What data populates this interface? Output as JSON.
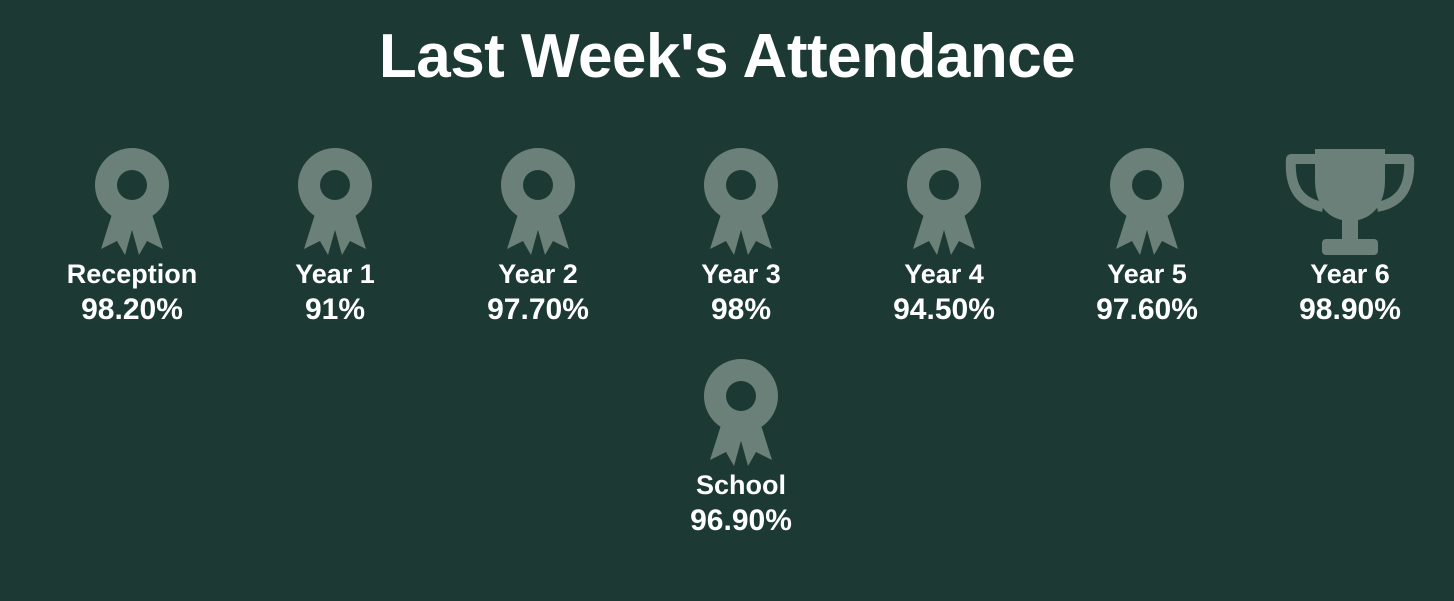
{
  "title": "Last Week's Attendance",
  "colors": {
    "background": "#1c3a33",
    "icon": "#6b8078",
    "text": "#ffffff"
  },
  "classes": [
    {
      "label": "Reception",
      "value": "98.20%",
      "icon": "ribbon-award-icon"
    },
    {
      "label": "Year 1",
      "value": "91%",
      "icon": "ribbon-award-icon"
    },
    {
      "label": "Year 2",
      "value": "97.70%",
      "icon": "ribbon-award-icon"
    },
    {
      "label": "Year 3",
      "value": "98%",
      "icon": "ribbon-award-icon"
    },
    {
      "label": "Year 4",
      "value": "94.50%",
      "icon": "ribbon-award-icon"
    },
    {
      "label": "Year 5",
      "value": "97.60%",
      "icon": "ribbon-award-icon"
    },
    {
      "label": "Year 6",
      "value": "98.90%",
      "icon": "trophy-icon"
    }
  ],
  "school": {
    "label": "School",
    "value": "96.90%",
    "icon": "ribbon-award-icon"
  }
}
